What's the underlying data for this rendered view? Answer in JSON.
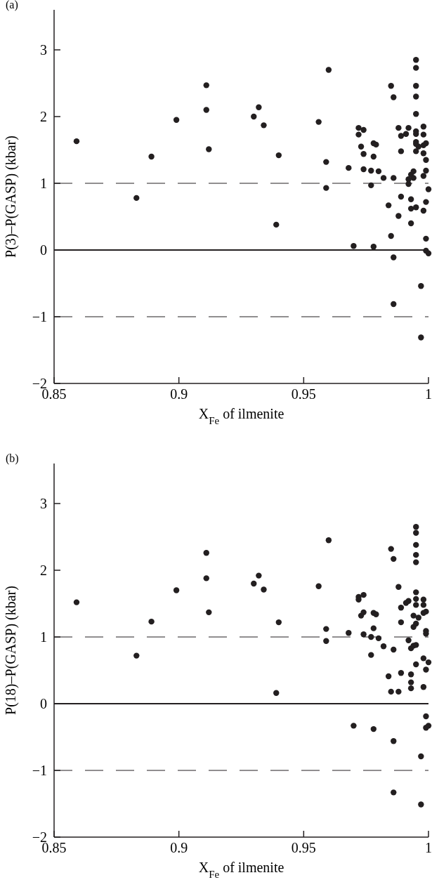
{
  "chart_data": [
    {
      "type": "scatter",
      "title": "(a)",
      "xlabel": "X$_{Fe}$ of ilmenite",
      "ylabel": "P(3)–P(GASP) (kbar)",
      "xlim": [
        0.85,
        1.0
      ],
      "xticks": [
        0.85,
        0.9,
        0.95,
        1
      ],
      "ylim": [
        -2,
        3.6
      ],
      "yticks": [
        -2,
        -1,
        0,
        1,
        2,
        3
      ],
      "marker": "circle",
      "grid": false,
      "ref_lines": [
        {
          "axis": "y",
          "value": 1,
          "line_style": "dashed"
        },
        {
          "axis": "y",
          "value": 0,
          "line_style": "solid"
        },
        {
          "axis": "y",
          "value": -1,
          "line_style": "dashed"
        }
      ],
      "series": [
        {
          "color": "#231f20",
          "x": [
            0.859,
            0.883,
            0.889,
            0.899,
            0.911,
            0.911,
            0.912,
            0.93,
            0.932,
            0.934,
            0.94,
            0.939,
            0.96,
            0.956,
            0.959,
            0.959,
            0.968,
            0.972,
            0.974,
            0.972,
            0.973,
            0.974,
            0.974,
            0.978,
            0.979,
            0.978,
            0.977,
            0.977,
            0.98,
            0.982,
            0.97,
            0.978,
            0.985,
            0.986,
            0.986,
            0.988,
            0.989,
            0.991,
            0.992,
            0.989,
            0.984,
            0.989,
            0.988,
            0.985,
            0.986,
            0.986,
            0.993,
            0.993,
            0.995,
            0.993,
            0.992,
            0.992,
            0.993,
            0.994,
            0.994,
            0.995,
            0.995,
            0.995,
            0.995,
            0.995,
            0.995,
            0.995,
            0.995,
            0.995,
            0.995,
            0.996,
            0.998,
            0.998,
            0.998,
            0.999,
            0.998,
            0.999,
            0.999,
            0.998,
            1.0,
            0.999,
            0.998,
            0.999,
            0.999,
            1.0,
            0.997,
            0.997
          ],
          "values": [
            1.63,
            0.78,
            1.4,
            1.95,
            2.47,
            2.1,
            1.51,
            2.0,
            2.14,
            1.87,
            1.42,
            0.38,
            2.7,
            1.92,
            1.32,
            0.93,
            1.23,
            1.83,
            1.8,
            1.73,
            1.55,
            1.44,
            1.21,
            1.6,
            1.58,
            1.4,
            1.19,
            0.97,
            1.18,
            1.08,
            0.06,
            0.05,
            2.46,
            2.29,
            1.08,
            1.83,
            1.71,
            1.74,
            1.83,
            1.48,
            0.67,
            0.8,
            0.51,
            0.21,
            -0.11,
            -0.81,
            0.76,
            0.62,
            0.64,
            0.4,
            0.99,
            1.06,
            1.13,
            1.18,
            1.08,
            2.85,
            2.73,
            2.46,
            2.3,
            2.04,
            1.78,
            1.74,
            1.62,
            1.59,
            1.48,
            1.55,
            1.45,
            1.85,
            1.73,
            1.6,
            1.57,
            1.35,
            1.19,
            1.11,
            0.91,
            0.72,
            0.59,
            0.17,
            -0.01,
            -0.05,
            -0.54,
            -1.31
          ]
        }
      ]
    },
    {
      "type": "scatter",
      "title": "(b)",
      "xlabel": "X$_{Fe}$ of ilmenite",
      "ylabel": "P(18)–P(GASP) (kbar)",
      "xlim": [
        0.85,
        1.0
      ],
      "xticks": [
        0.85,
        0.9,
        0.95,
        1
      ],
      "ylim": [
        -2,
        3.6
      ],
      "yticks": [
        -2,
        -1,
        0,
        1,
        2,
        3
      ],
      "marker": "circle",
      "grid": false,
      "ref_lines": [
        {
          "axis": "y",
          "value": 1,
          "line_style": "dashed"
        },
        {
          "axis": "y",
          "value": 0,
          "line_style": "solid"
        },
        {
          "axis": "y",
          "value": -1,
          "line_style": "dashed"
        }
      ],
      "series": [
        {
          "color": "#231f20",
          "x": [
            0.859,
            0.883,
            0.889,
            0.899,
            0.911,
            0.911,
            0.912,
            0.93,
            0.932,
            0.934,
            0.94,
            0.939,
            0.96,
            0.956,
            0.959,
            0.959,
            0.968,
            0.972,
            0.974,
            0.972,
            0.973,
            0.974,
            0.974,
            0.978,
            0.979,
            0.978,
            0.977,
            0.977,
            0.98,
            0.982,
            0.97,
            0.978,
            0.985,
            0.986,
            0.988,
            0.989,
            0.991,
            0.992,
            0.989,
            0.986,
            0.984,
            0.989,
            0.993,
            0.993,
            0.993,
            0.985,
            0.988,
            0.998,
            0.986,
            0.986,
            0.997,
            0.997,
            0.999,
            0.999,
            1.0,
            0.992,
            0.993,
            0.994,
            0.995,
            0.994,
            0.995,
            0.996,
            0.994,
            0.995,
            0.995,
            0.995,
            0.995,
            0.995,
            0.995,
            0.995,
            0.995,
            0.998,
            0.998,
            0.999,
            0.998,
            0.999,
            0.999,
            0.998,
            1.0,
            0.999,
            0.995
          ],
          "values": [
            1.52,
            0.72,
            1.23,
            1.7,
            2.26,
            1.88,
            1.37,
            1.8,
            1.92,
            1.71,
            1.22,
            0.16,
            2.45,
            1.76,
            1.12,
            0.94,
            1.06,
            1.6,
            1.63,
            1.56,
            1.32,
            1.37,
            1.04,
            1.36,
            1.34,
            1.13,
            1.0,
            0.73,
            0.98,
            0.86,
            -0.33,
            -0.38,
            2.32,
            2.17,
            1.75,
            1.44,
            1.51,
            1.54,
            1.22,
            0.81,
            0.41,
            0.46,
            0.44,
            0.32,
            0.23,
            0.18,
            0.18,
            0.25,
            -0.56,
            -1.33,
            -0.79,
            -1.51,
            -0.19,
            -0.36,
            -0.33,
            0.95,
            0.83,
            0.87,
            0.88,
            1.15,
            1.2,
            1.29,
            1.32,
            2.65,
            2.56,
            2.38,
            2.23,
            2.12,
            1.67,
            1.57,
            1.48,
            1.56,
            1.48,
            1.38,
            1.36,
            1.09,
            1.05,
            0.68,
            0.62,
            0.51,
            0.59
          ]
        }
      ]
    }
  ]
}
